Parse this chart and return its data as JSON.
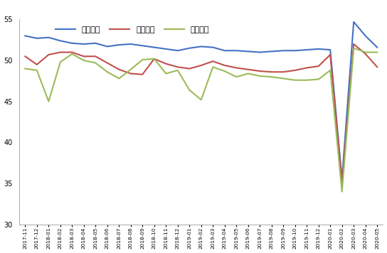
{
  "labels": [
    "2017-11",
    "2017-12",
    "2018-01",
    "2018-02",
    "2018-03",
    "2018-04",
    "2018-05",
    "2018-06",
    "2018-07",
    "2018-08",
    "2018-09",
    "2018-10",
    "2018-11",
    "2018-12",
    "2019-01",
    "2019-02",
    "2019-03",
    "2019-04",
    "2019-05",
    "2019-06",
    "2019-07",
    "2019-08",
    "2019-09",
    "2019-10",
    "2019-11",
    "2019-12",
    "2020-01",
    "2020-02",
    "2020-03",
    "2020-04",
    "2020-05"
  ],
  "large": [
    53.0,
    52.7,
    52.8,
    52.4,
    52.1,
    52.0,
    52.1,
    51.7,
    51.9,
    52.0,
    51.8,
    51.6,
    51.4,
    51.2,
    51.5,
    51.7,
    51.6,
    51.2,
    51.2,
    51.1,
    51.0,
    51.1,
    51.2,
    51.2,
    51.3,
    51.4,
    51.3,
    35.5,
    54.7,
    53.0,
    51.6
  ],
  "medium": [
    50.5,
    49.5,
    50.7,
    51.0,
    51.0,
    50.5,
    50.5,
    49.7,
    48.9,
    48.4,
    48.3,
    50.2,
    49.6,
    49.2,
    49.0,
    49.4,
    49.9,
    49.4,
    49.1,
    48.9,
    48.7,
    48.6,
    48.6,
    48.8,
    49.1,
    49.3,
    50.7,
    35.0,
    52.0,
    50.8,
    49.2
  ],
  "small": [
    49.0,
    48.8,
    45.0,
    49.8,
    50.8,
    50.0,
    49.7,
    48.6,
    47.8,
    48.9,
    50.1,
    50.2,
    48.4,
    48.8,
    46.4,
    45.2,
    49.2,
    48.7,
    48.0,
    48.4,
    48.1,
    48.0,
    47.8,
    47.6,
    47.6,
    47.7,
    48.8,
    34.0,
    51.5,
    51.0,
    51.0
  ],
  "large_color": "#4472C4",
  "medium_color": "#C0504D",
  "small_color": "#9BBB59",
  "ylim": [
    30,
    55
  ],
  "yticks": [
    30,
    35,
    40,
    45,
    50,
    55
  ],
  "legend_labels": [
    "大型企业",
    "中型企业",
    "小型企业"
  ],
  "linewidth": 1.5
}
